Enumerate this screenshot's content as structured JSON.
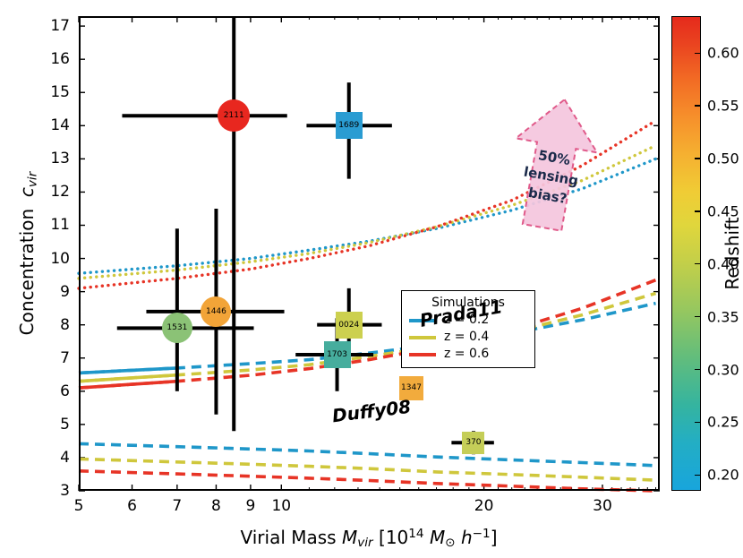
{
  "chart_data": {
    "type": "scatter",
    "title": "",
    "xlabel_segments": [
      {
        "t": "Virial Mass ",
        "s": "n"
      },
      {
        "t": "M",
        "s": "i"
      },
      {
        "t": "vir",
        "s": "isub"
      },
      {
        "t": " [10",
        "s": "n"
      },
      {
        "t": "14",
        "s": "sup"
      },
      {
        "t": " ",
        "s": "n"
      },
      {
        "t": "M",
        "s": "i"
      },
      {
        "t": "⊙",
        "s": "sub"
      },
      {
        "t": " ",
        "s": "n"
      },
      {
        "t": "h",
        "s": "i"
      },
      {
        "t": "−1",
        "s": "sup"
      },
      {
        "t": "]",
        "s": "n"
      }
    ],
    "ylabel_segments": [
      {
        "t": "Concentration  ",
        "s": "n"
      },
      {
        "t": "c",
        "s": "i"
      },
      {
        "t": "vir",
        "s": "isub"
      }
    ],
    "axes": {
      "x": {
        "scale": "log",
        "min": 5,
        "max": 36.5,
        "ticks": [
          {
            "v": 5,
            "label": "5"
          },
          {
            "v": 6,
            "label": "6"
          },
          {
            "v": 7,
            "label": "7"
          },
          {
            "v": 8,
            "label": "8"
          },
          {
            "v": 9,
            "label": "9"
          },
          {
            "v": 10,
            "label": "10"
          },
          {
            "v": 20,
            "label": "20"
          },
          {
            "v": 30,
            "label": "30"
          }
        ],
        "minor_ticks": [
          11,
          12,
          13,
          14,
          15,
          16,
          17,
          18,
          19,
          21,
          22,
          23,
          24,
          25,
          26,
          27,
          28,
          29,
          31,
          32,
          33,
          34,
          35,
          36
        ]
      },
      "y": {
        "scale": "linear",
        "min": 3,
        "max": 17.3,
        "ticks": [
          3,
          4,
          5,
          6,
          7,
          8,
          9,
          10,
          11,
          12,
          13,
          14,
          15,
          16,
          17
        ]
      }
    },
    "points": [
      {
        "label": "2111",
        "marker": "circle",
        "size": 36,
        "color": "#e8271f",
        "x": 8.5,
        "y": 14.3,
        "xerr": [
          5.8,
          10.2
        ],
        "yerr": [
          4.8,
          17.6
        ]
      },
      {
        "label": "1689",
        "marker": "square",
        "size": 30,
        "color": "#2a9cd2",
        "x": 12.6,
        "y": 14.0,
        "xerr": [
          10.9,
          14.6
        ],
        "yerr": [
          12.4,
          15.3
        ]
      },
      {
        "label": "1446",
        "marker": "circle",
        "size": 34,
        "color": "#f2a438",
        "x": 8.0,
        "y": 8.4,
        "xerr": [
          6.3,
          10.1
        ],
        "yerr": [
          5.3,
          11.5
        ]
      },
      {
        "label": "1531",
        "marker": "circle",
        "size": 34,
        "color": "#8bc276",
        "x": 7.0,
        "y": 7.9,
        "xerr": [
          5.7,
          9.1
        ],
        "yerr": [
          6.0,
          10.9
        ]
      },
      {
        "label": "0024",
        "marker": "square",
        "size": 30,
        "color": "#ccd04f",
        "x": 12.6,
        "y": 8.0,
        "xerr": [
          11.3,
          14.1
        ],
        "yerr": [
          6.9,
          9.1
        ]
      },
      {
        "label": "1703",
        "marker": "square",
        "size": 30,
        "color": "#46ad9d",
        "x": 12.1,
        "y": 7.1,
        "xerr": [
          10.5,
          13.7
        ],
        "yerr": [
          6.0,
          8.2
        ]
      },
      {
        "label": "1347",
        "marker": "square",
        "size": 27,
        "color": "#f2ab3d",
        "x": 15.6,
        "y": 6.1,
        "xerr": null,
        "yerr": null
      },
      {
        "label": "370",
        "marker": "square",
        "size": 25,
        "color": "#c5ce58",
        "x": 19.3,
        "y": 4.45,
        "xerr": [
          17.9,
          20.7
        ],
        "yerr": [
          4.1,
          4.8
        ]
      }
    ],
    "curves": [
      {
        "name": "Prada11 +50% bias z=0.2",
        "style": "dotted",
        "color": "#1f97c9",
        "x": [
          5,
          7,
          9,
          11,
          13.5,
          17,
          22,
          28,
          36
        ],
        "y": [
          9.55,
          9.78,
          10.0,
          10.25,
          10.52,
          10.9,
          11.45,
          12.1,
          13.0
        ]
      },
      {
        "name": "Prada11 +50% bias z=0.4",
        "style": "dotted",
        "color": "#cfc73c",
        "x": [
          5,
          7,
          9,
          11,
          13.5,
          17,
          22,
          28,
          36
        ],
        "y": [
          9.4,
          9.65,
          9.9,
          10.15,
          10.48,
          10.95,
          11.6,
          12.35,
          13.4
        ]
      },
      {
        "name": "Prada11 +50% bias z=0.6",
        "style": "dotted",
        "color": "#e73426",
        "x": [
          5,
          7,
          9,
          11,
          13.5,
          17,
          22,
          28,
          36
        ],
        "y": [
          9.1,
          9.4,
          9.68,
          10.0,
          10.38,
          10.95,
          11.75,
          12.8,
          14.15
        ]
      },
      {
        "name": "Prada11 z=0.2",
        "style": "dashed",
        "color": "#1f97c9",
        "solid_until": 7,
        "x": [
          5,
          7,
          9,
          11,
          13.5,
          17,
          22,
          28,
          36
        ],
        "y": [
          6.55,
          6.7,
          6.83,
          6.95,
          7.15,
          7.4,
          7.75,
          8.15,
          8.65
        ]
      },
      {
        "name": "Prada11 z=0.4",
        "style": "dashed",
        "color": "#cfc73c",
        "solid_until": 7,
        "x": [
          5,
          7,
          9,
          11,
          13.5,
          17,
          22,
          28,
          36
        ],
        "y": [
          6.3,
          6.49,
          6.64,
          6.8,
          7.05,
          7.35,
          7.78,
          8.3,
          8.95
        ]
      },
      {
        "name": "Prada11 z=0.6",
        "style": "dashed",
        "color": "#e73426",
        "solid_until": 7,
        "x": [
          5,
          7,
          9,
          11,
          13.5,
          17,
          22,
          28,
          36
        ],
        "y": [
          6.1,
          6.3,
          6.48,
          6.68,
          6.95,
          7.32,
          7.85,
          8.5,
          9.35
        ]
      },
      {
        "name": "Duffy08 z=0.2",
        "style": "dashed",
        "color": "#1f97c9",
        "x": [
          5,
          7,
          9,
          11,
          13.5,
          17,
          22,
          28,
          36
        ],
        "y": [
          4.42,
          4.33,
          4.26,
          4.2,
          4.12,
          4.02,
          3.93,
          3.85,
          3.76
        ]
      },
      {
        "name": "Duffy08 z=0.4",
        "style": "dashed",
        "color": "#cfc73c",
        "x": [
          5,
          7,
          9,
          11,
          13.5,
          17,
          22,
          28,
          36
        ],
        "y": [
          3.96,
          3.87,
          3.8,
          3.74,
          3.67,
          3.57,
          3.49,
          3.41,
          3.32
        ]
      },
      {
        "name": "Duffy08 z=0.6",
        "style": "dashed",
        "color": "#e73426",
        "x": [
          5,
          7,
          9,
          11,
          13.5,
          17,
          22,
          28,
          36
        ],
        "y": [
          3.6,
          3.51,
          3.44,
          3.38,
          3.31,
          3.22,
          3.14,
          3.06,
          3.0
        ]
      }
    ],
    "legend": {
      "title": "Simulations",
      "entries": [
        {
          "label": "z = 0.2",
          "color": "#1f97c9"
        },
        {
          "label": "z = 0.4",
          "color": "#cfc73c"
        },
        {
          "label": "z = 0.6",
          "color": "#e73426"
        }
      ]
    },
    "annotations": [
      {
        "text": "Prada11",
        "x": 18.5,
        "y": 8.35,
        "rot": -10
      },
      {
        "text": "Duffy08",
        "x": 13.6,
        "y": 5.4,
        "rot": -7
      }
    ],
    "arrow": {
      "lines": [
        "50%",
        "lensing",
        "bias?"
      ],
      "fill": "#f4c6de",
      "stroke": "#e05a8a",
      "text_color": "#1b2a4a"
    },
    "colorbar": {
      "label": "Redshift",
      "min": 0.185,
      "max": 0.635,
      "ticks": [
        {
          "v": 0.2,
          "label": "0.20"
        },
        {
          "v": 0.25,
          "label": "0.25"
        },
        {
          "v": 0.3,
          "label": "0.30"
        },
        {
          "v": 0.35,
          "label": "0.35"
        },
        {
          "v": 0.4,
          "label": "0.40"
        },
        {
          "v": 0.45,
          "label": "0.45"
        },
        {
          "v": 0.5,
          "label": "0.50"
        },
        {
          "v": 0.55,
          "label": "0.55"
        },
        {
          "v": 0.6,
          "label": "0.60"
        }
      ],
      "gradient": [
        [
          0.0,
          "#18a5dc"
        ],
        [
          0.1,
          "#23aec4"
        ],
        [
          0.18,
          "#35b49f"
        ],
        [
          0.28,
          "#62bd7c"
        ],
        [
          0.38,
          "#96c75f"
        ],
        [
          0.48,
          "#c3cf49"
        ],
        [
          0.56,
          "#e0d63c"
        ],
        [
          0.63,
          "#f0cc35"
        ],
        [
          0.71,
          "#f5b031"
        ],
        [
          0.79,
          "#f68f2b"
        ],
        [
          0.87,
          "#f26a24"
        ],
        [
          0.94,
          "#ea4520"
        ],
        [
          1.0,
          "#e52a1c"
        ]
      ]
    }
  }
}
